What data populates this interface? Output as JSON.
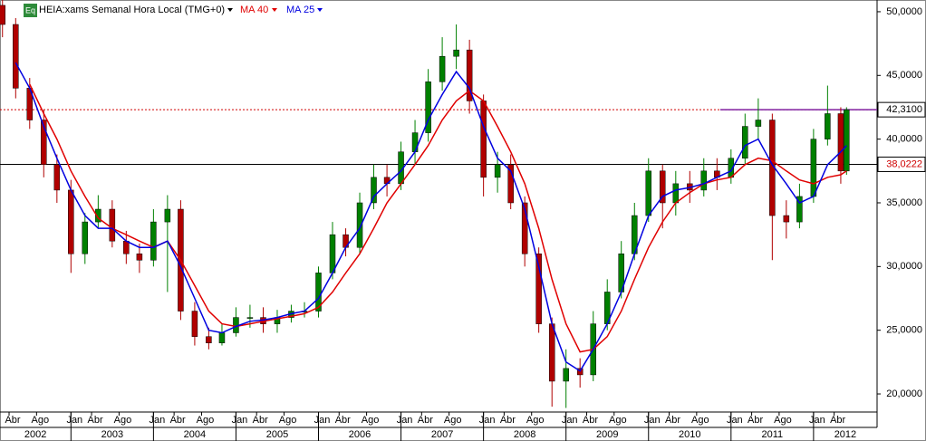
{
  "chart_data": {
    "type": "candlestick",
    "title": "HEIA:xams Semanal Hora Local (TMG+0)",
    "badge": "Eq",
    "up_color": "#008000",
    "down_color": "#b00000",
    "x": [
      2002.17,
      2002.33,
      2002.5,
      2002.67,
      2002.83,
      2003.0,
      2003.17,
      2003.33,
      2003.5,
      2003.67,
      2003.83,
      2004.0,
      2004.17,
      2004.33,
      2004.5,
      2004.67,
      2004.83,
      2005.0,
      2005.17,
      2005.33,
      2005.5,
      2005.67,
      2005.83,
      2006.0,
      2006.17,
      2006.33,
      2006.5,
      2006.67,
      2006.83,
      2007.0,
      2007.17,
      2007.33,
      2007.5,
      2007.67,
      2007.83,
      2008.0,
      2008.17,
      2008.33,
      2008.5,
      2008.67,
      2008.83,
      2009.0,
      2009.17,
      2009.33,
      2009.5,
      2009.67,
      2009.83,
      2010.0,
      2010.17,
      2010.33,
      2010.5,
      2010.67,
      2010.83,
      2011.0,
      2011.17,
      2011.33,
      2011.5,
      2011.67,
      2011.83,
      2012.0,
      2012.17,
      2012.33,
      2012.4
    ],
    "open": [
      50500,
      49000,
      44000,
      41500,
      38000,
      36000,
      31000,
      33500,
      34500,
      32000,
      31000,
      30500,
      33500,
      34500,
      26500,
      24500,
      24000,
      24800,
      26000,
      26000,
      25500,
      26000,
      26500,
      26500,
      29500,
      32500,
      31500,
      35000,
      37000,
      36500,
      39000,
      40500,
      44500,
      46500,
      47000,
      43000,
      37000,
      38000,
      35000,
      31000,
      25500,
      21000,
      22000,
      21500,
      25500,
      28000,
      31000,
      34000,
      37500,
      35000,
      36500,
      36000,
      37500,
      37000,
      38500,
      41000,
      41500,
      34000,
      33500,
      35500,
      40000,
      42000,
      37500
    ],
    "high": [
      51200,
      49500,
      44800,
      42300,
      38800,
      36800,
      34200,
      35600,
      35200,
      32800,
      31800,
      34500,
      35600,
      35200,
      27200,
      25200,
      25500,
      26800,
      27000,
      26800,
      26600,
      27000,
      27200,
      30000,
      33500,
      33000,
      35800,
      38000,
      38000,
      39800,
      41500,
      45500,
      48000,
      49000,
      47800,
      43500,
      39000,
      38800,
      35500,
      31500,
      26000,
      23500,
      22800,
      26500,
      29000,
      32000,
      35000,
      38500,
      38000,
      37500,
      37500,
      38500,
      38500,
      39200,
      42000,
      43200,
      42000,
      35200,
      36500,
      40800,
      44200,
      42500,
      42500
    ],
    "low": [
      48000,
      43200,
      40800,
      37000,
      35000,
      29500,
      30200,
      33000,
      31500,
      30200,
      29500,
      30000,
      28000,
      25800,
      23800,
      23500,
      23800,
      24500,
      25200,
      24800,
      24800,
      25600,
      26000,
      26000,
      29000,
      30800,
      31000,
      34500,
      35500,
      36000,
      38000,
      39800,
      43800,
      45500,
      42000,
      35500,
      35800,
      34500,
      30000,
      24800,
      19000,
      18900,
      20500,
      21000,
      25000,
      27500,
      30500,
      33500,
      33000,
      34000,
      35000,
      35500,
      36000,
      36500,
      38000,
      40000,
      30500,
      32200,
      33000,
      35000,
      39500,
      36500,
      37200
    ],
    "close": [
      49000,
      44000,
      41500,
      38000,
      36000,
      31000,
      33500,
      34500,
      32000,
      31000,
      30500,
      33500,
      34500,
      26500,
      24500,
      24000,
      24800,
      26000,
      26000,
      25500,
      26000,
      26500,
      26500,
      29500,
      32500,
      31500,
      35000,
      37000,
      36500,
      39000,
      40500,
      44500,
      46500,
      47000,
      43000,
      37000,
      38000,
      35000,
      31000,
      25500,
      21000,
      22000,
      21500,
      25500,
      28000,
      31000,
      34000,
      37500,
      35000,
      36500,
      36000,
      37500,
      37000,
      38500,
      41000,
      41500,
      34000,
      33500,
      35500,
      40000,
      42000,
      37500,
      42310
    ],
    "series": [
      {
        "name": "MA 40",
        "color": "#e00000",
        "values": [
          null,
          null,
          44300,
          42000,
          40000,
          37500,
          35500,
          33800,
          33000,
          32500,
          32000,
          31500,
          32000,
          30500,
          28500,
          26500,
          25500,
          25300,
          25500,
          25700,
          25900,
          26100,
          26300,
          26800,
          28000,
          29500,
          31000,
          33000,
          35000,
          36500,
          38000,
          39500,
          41500,
          43000,
          43800,
          43000,
          41000,
          39000,
          36500,
          33000,
          29000,
          25500,
          23300,
          23500,
          24500,
          26500,
          29000,
          31500,
          33500,
          35000,
          35800,
          36500,
          36800,
          37000,
          38000,
          38500,
          38300,
          37500,
          36800,
          36500,
          37000,
          37200,
          37500
        ]
      },
      {
        "name": "MA 25",
        "color": "#0000e0",
        "values": [
          null,
          46000,
          44000,
          41000,
          38500,
          36000,
          34000,
          33000,
          33000,
          32000,
          31500,
          31500,
          32000,
          30000,
          27500,
          25000,
          24800,
          25300,
          25700,
          25800,
          26000,
          26300,
          26500,
          27500,
          29500,
          31500,
          33000,
          35500,
          36500,
          37500,
          39000,
          41500,
          43500,
          45300,
          44000,
          41000,
          38500,
          37500,
          34500,
          30000,
          25500,
          22500,
          21800,
          23500,
          25500,
          28000,
          31000,
          34000,
          35500,
          36000,
          36200,
          36500,
          37000,
          37500,
          39500,
          40000,
          38000,
          36500,
          35000,
          35500,
          38000,
          39000,
          39500
        ]
      }
    ],
    "xlim": [
      2002.14,
      2012.77
    ],
    "ylim": [
      18580,
      50920
    ],
    "yticks": [
      {
        "value": 20000,
        "label": "20,0000"
      },
      {
        "value": 25000,
        "label": "25,0000"
      },
      {
        "value": 30000,
        "label": "30,0000"
      },
      {
        "value": 35000,
        "label": "35,0000"
      },
      {
        "value": 40000,
        "label": "40,0000"
      },
      {
        "value": 45000,
        "label": "45,0000"
      },
      {
        "value": 50000,
        "label": "50,0000"
      }
    ],
    "xticks": [
      {
        "value": 2002.25,
        "label": "Abr"
      },
      {
        "value": 2002.583,
        "label": "Ago"
      },
      {
        "value": 2003.0,
        "label": "Jan"
      },
      {
        "value": 2003.25,
        "label": "Abr"
      },
      {
        "value": 2003.583,
        "label": "Ago"
      },
      {
        "value": 2004.0,
        "label": "Jan"
      },
      {
        "value": 2004.25,
        "label": "Abr"
      },
      {
        "value": 2004.583,
        "label": "Ago"
      },
      {
        "value": 2005.0,
        "label": "Jan"
      },
      {
        "value": 2005.25,
        "label": "Abr"
      },
      {
        "value": 2005.583,
        "label": "Ago"
      },
      {
        "value": 2006.0,
        "label": "Jan"
      },
      {
        "value": 2006.25,
        "label": "Abr"
      },
      {
        "value": 2006.583,
        "label": "Ago"
      },
      {
        "value": 2007.0,
        "label": "Jan"
      },
      {
        "value": 2007.25,
        "label": "Abr"
      },
      {
        "value": 2007.583,
        "label": "Ago"
      },
      {
        "value": 2008.0,
        "label": "Jan"
      },
      {
        "value": 2008.25,
        "label": "Abr"
      },
      {
        "value": 2008.583,
        "label": "Ago"
      },
      {
        "value": 2009.0,
        "label": "Jan"
      },
      {
        "value": 2009.25,
        "label": "Abr"
      },
      {
        "value": 2009.583,
        "label": "Ago"
      },
      {
        "value": 2010.0,
        "label": "Jan"
      },
      {
        "value": 2010.25,
        "label": "Abr"
      },
      {
        "value": 2010.583,
        "label": "Ago"
      },
      {
        "value": 2011.0,
        "label": "Jan"
      },
      {
        "value": 2011.25,
        "label": "Abr"
      },
      {
        "value": 2011.583,
        "label": "Ago"
      },
      {
        "value": 2012.0,
        "label": "Jan"
      },
      {
        "value": 2012.25,
        "label": "Abr"
      }
    ],
    "year_ticks": [
      2002,
      2003,
      2004,
      2005,
      2006,
      2007,
      2008,
      2009,
      2010,
      2011,
      2012
    ],
    "price_lines": [
      {
        "value": 42310,
        "label": "42,3100",
        "color": "#d00000",
        "label_color": "#000000",
        "dotted": true
      },
      {
        "value": 38022.2,
        "label": "38,0222",
        "color": "#000000",
        "label_color": "#d00000",
        "dotted": false
      }
    ],
    "trendline": {
      "x": [
        2010.87,
        2012.77
      ],
      "y": [
        42310,
        42310
      ],
      "color": "#8020a0"
    },
    "grid": false
  }
}
